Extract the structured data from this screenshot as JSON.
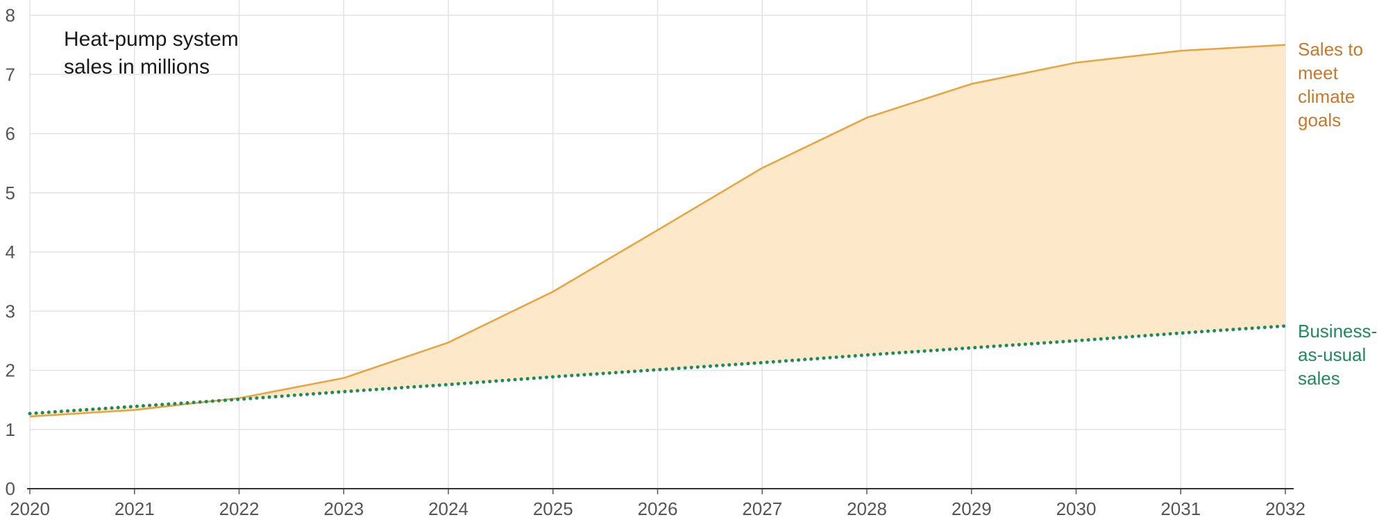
{
  "chart_data": {
    "type": "area",
    "title_lines": [
      "Heat-pump system",
      "sales in millions"
    ],
    "x": [
      2020,
      2021,
      2022,
      2023,
      2024,
      2025,
      2026,
      2027,
      2028,
      2029,
      2030,
      2031,
      2032
    ],
    "xlim": [
      2020,
      2032
    ],
    "ylim": [
      0,
      8
    ],
    "yticks": [
      0,
      1,
      2,
      3,
      4,
      5,
      6,
      7,
      8
    ],
    "grid": true,
    "series": [
      {
        "key": "climate",
        "label_lines": [
          "Sales to",
          "meet",
          "climate",
          "goals"
        ],
        "style": "solid-line-with-fill",
        "color": "#e8a33d",
        "label_color": "#c9782a",
        "fill_color": "#fde9c9",
        "values": [
          1.22,
          1.33,
          1.53,
          1.87,
          2.47,
          3.33,
          4.37,
          5.42,
          6.27,
          6.84,
          7.2,
          7.4,
          7.5
        ]
      },
      {
        "key": "business",
        "label_lines": [
          "Business-",
          "as-usual",
          "sales"
        ],
        "style": "dotted-line",
        "color": "#1f8a5b",
        "label_color": "#1f8a5b",
        "values": [
          1.27,
          1.39,
          1.51,
          1.64,
          1.76,
          1.89,
          2.01,
          2.13,
          2.26,
          2.38,
          2.5,
          2.63,
          2.75
        ]
      }
    ]
  }
}
